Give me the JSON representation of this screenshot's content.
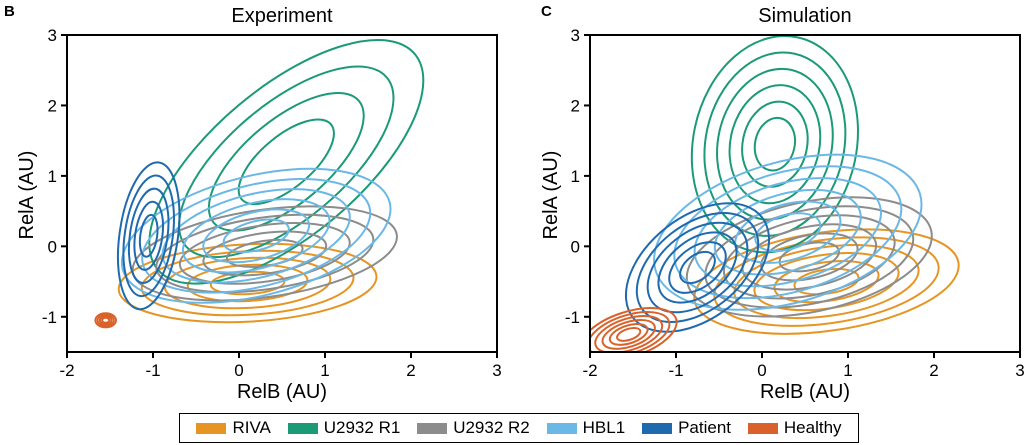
{
  "chart_data": [
    {
      "panel": "B",
      "type": "contour",
      "title": "Experiment",
      "xlabel": "RelB (AU)",
      "ylabel": "RelA (AU)",
      "xlim": [
        -2,
        3
      ],
      "ylim": [
        -1.5,
        3
      ],
      "xticks": [
        -2,
        -1,
        0,
        1,
        2,
        3
      ],
      "yticks": [
        -1,
        0,
        1,
        2,
        3
      ],
      "xtick_labels": [
        "-2",
        "-1",
        "0",
        "1",
        "2",
        "3"
      ],
      "ytick_labels": [
        "-1",
        "0",
        "1",
        "2",
        "3"
      ],
      "series": [
        {
          "name": "RIVA",
          "color": "#E69524",
          "center": [
            0.1,
            -0.52
          ],
          "rx": 1.5,
          "ry": 0.55,
          "angle": 3,
          "levels": 5
        },
        {
          "name": "U2932 R1",
          "color": "#1B9A78",
          "center": [
            0.55,
            1.2
          ],
          "rx": 1.95,
          "ry": 1.05,
          "angle": 40,
          "levels": 4
        },
        {
          "name": "U2932 R2",
          "color": "#8C8C8C",
          "center": [
            0.3,
            -0.1
          ],
          "rx": 1.55,
          "ry": 0.62,
          "angle": 8,
          "levels": 5
        },
        {
          "name": "HBL1",
          "color": "#6AB8E6",
          "center": [
            0.2,
            0.15
          ],
          "rx": 1.6,
          "ry": 0.85,
          "angle": 14,
          "levels": 6
        },
        {
          "name": "Patient",
          "color": "#1F6AAE",
          "center": [
            -1.05,
            0.15
          ],
          "rx": 0.34,
          "ry": 1.05,
          "angle": -8,
          "levels": 5
        },
        {
          "name": "Healthy",
          "color": "#D9622B",
          "center": [
            -1.55,
            -1.05
          ],
          "rx": 0.12,
          "ry": 0.1,
          "angle": 0,
          "levels": 4
        }
      ]
    },
    {
      "panel": "C",
      "type": "contour",
      "title": "Simulation",
      "xlabel": "RelB (AU)",
      "ylabel": "RelA (AU)",
      "xlim": [
        -2,
        3
      ],
      "ylim": [
        -1.5,
        3
      ],
      "xticks": [
        -2,
        -1,
        0,
        1,
        2,
        3
      ],
      "yticks": [
        -1,
        0,
        1,
        2,
        3
      ],
      "xtick_labels": [
        "-2",
        "-1",
        "0",
        "1",
        "2",
        "3"
      ],
      "ytick_labels": [
        "-1",
        "0",
        "1",
        "2",
        "3"
      ],
      "series": [
        {
          "name": "RIVA",
          "color": "#E69524",
          "center": [
            0.75,
            -0.5
          ],
          "rx": 1.55,
          "ry": 0.7,
          "angle": 8,
          "levels": 6
        },
        {
          "name": "U2932 R1",
          "color": "#1B9A78",
          "center": [
            0.15,
            1.45
          ],
          "rx": 0.95,
          "ry": 1.55,
          "angle": -12,
          "levels": 6
        },
        {
          "name": "U2932 R2",
          "color": "#8C8C8C",
          "center": [
            0.55,
            -0.15
          ],
          "rx": 1.45,
          "ry": 0.78,
          "angle": 12,
          "levels": 6
        },
        {
          "name": "HBL1",
          "color": "#6AB8E6",
          "center": [
            0.3,
            0.2
          ],
          "rx": 1.6,
          "ry": 1.0,
          "angle": 16,
          "levels": 6
        },
        {
          "name": "Patient",
          "color": "#1F6AAE",
          "center": [
            -0.75,
            -0.3
          ],
          "rx": 0.95,
          "ry": 0.72,
          "angle": 38,
          "levels": 6
        },
        {
          "name": "Healthy",
          "color": "#D9622B",
          "center": [
            -1.55,
            -1.25
          ],
          "rx": 0.58,
          "ry": 0.32,
          "angle": 18,
          "levels": 6
        }
      ]
    }
  ],
  "legend": {
    "position": "bottom",
    "items": [
      {
        "label": "RIVA",
        "color": "#E69524"
      },
      {
        "label": "U2932 R1",
        "color": "#1B9A78"
      },
      {
        "label": "U2932 R2",
        "color": "#8C8C8C"
      },
      {
        "label": "HBL1",
        "color": "#6AB8E6"
      },
      {
        "label": "Patient",
        "color": "#1F6AAE"
      },
      {
        "label": "Healthy",
        "color": "#D9622B"
      }
    ]
  }
}
